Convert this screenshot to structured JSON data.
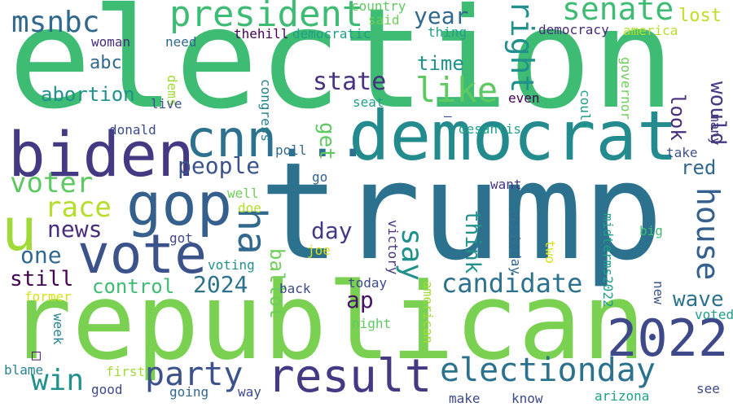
{
  "words": [
    {
      "text": "election",
      "color": "#3fbc73"
    },
    {
      "text": "trump",
      "color": "#2c728e"
    },
    {
      "text": "republican",
      "color": "#7ad151"
    },
    {
      "text": "democrat",
      "color": "#238a8d"
    },
    {
      "text": "biden",
      "color": "#443983"
    },
    {
      "text": "vote",
      "color": "#3b528b"
    },
    {
      "text": "gop",
      "color": "#355f8d"
    },
    {
      "text": "result",
      "color": "#443983"
    },
    {
      "text": "electionday",
      "color": "#2c728e"
    },
    {
      "text": "cnn...",
      "color": "#2c728e"
    },
    {
      "text": "2022",
      "color": "#3e4989"
    },
    {
      "text": "u",
      "color": "#a0da39"
    },
    {
      "text": "ha",
      "color": "#31688e"
    },
    {
      "text": "president",
      "color": "#3fbc73"
    },
    {
      "text": "senate",
      "color": "#3fbc73"
    },
    {
      "text": "msnbc",
      "color": "#31688e"
    },
    {
      "text": "like",
      "color": "#5ec962"
    },
    {
      "text": "right",
      "color": "#21918c"
    },
    {
      "text": "voter",
      "color": "#5ec962"
    },
    {
      "text": "race",
      "color": "#b5de2b"
    },
    {
      "text": "party",
      "color": "#3b528b"
    },
    {
      "text": "candidate",
      "color": "#2c728e"
    },
    {
      "text": "house",
      "color": "#355f8d"
    },
    {
      "text": "win",
      "color": "#21918c"
    },
    {
      "text": "say",
      "color": "#21918c"
    },
    {
      "text": "state",
      "color": "#46327e"
    },
    {
      "text": "people",
      "color": "#3b528b"
    },
    {
      "text": "news",
      "color": "#472d7b"
    },
    {
      "text": "control",
      "color": "#3fbc73"
    },
    {
      "text": "2024",
      "color": "#2c728e"
    },
    {
      "text": "year",
      "color": "#31688e"
    },
    {
      "text": "day",
      "color": "#443983"
    },
    {
      "text": "would",
      "color": "#443983"
    },
    {
      "text": "abortion",
      "color": "#21918c"
    },
    {
      "text": "still",
      "color": "#440154"
    },
    {
      "text": "one",
      "color": "#31688e"
    },
    {
      "text": "wave",
      "color": "#2c728e"
    },
    {
      "text": "time",
      "color": "#21918c"
    },
    {
      "text": "look",
      "color": "#472d7b"
    },
    {
      "text": "red",
      "color": "#31688e"
    },
    {
      "text": "abc",
      "color": "#31688e"
    },
    {
      "text": "ap",
      "color": "#471365"
    },
    {
      "text": "ballot",
      "color": "#6ece58"
    },
    {
      "text": "think",
      "color": "#21918c"
    },
    {
      "text": "get",
      "color": "#5ec962"
    },
    {
      "text": "lost",
      "color": "#bddf26"
    },
    {
      "text": "thehill",
      "color": "#440154"
    },
    {
      "text": "democratic",
      "color": "#1f9e89"
    },
    {
      "text": "country",
      "color": "#5ec962"
    },
    {
      "text": "said",
      "color": "#6ece58"
    },
    {
      "text": "thing",
      "color": "#1f9e89"
    },
    {
      "text": "democracy",
      "color": "#472d7b"
    },
    {
      "text": "america",
      "color": "#b5de2b"
    },
    {
      "text": "woman",
      "color": "#472d7b"
    },
    {
      "text": "need",
      "color": "#31688e"
    },
    {
      "text": "dems",
      "color": "#a0da39"
    },
    {
      "text": "live",
      "color": "#3b528b"
    },
    {
      "text": "congress",
      "color": "#26828e"
    },
    {
      "text": "seat",
      "color": "#1f9e89"
    },
    {
      "text": "even",
      "color": "#440154"
    },
    {
      "text": "could",
      "color": "#1fa187"
    },
    {
      "text": "governor",
      "color": "#6ece58"
    },
    {
      "text": "desantis",
      "color": "#1fa187"
    },
    {
      "text": "donald",
      "color": "#3e4989"
    },
    {
      "text": "poll",
      "color": "#31688e"
    },
    {
      "text": "go",
      "color": "#33638d"
    },
    {
      "text": "take",
      "color": "#3b528b"
    },
    {
      "text": "many",
      "color": "#46327e"
    },
    {
      "text": "want",
      "color": "#453781"
    },
    {
      "text": "well",
      "color": "#6ece58"
    },
    {
      "text": "doe",
      "color": "#b5de2b"
    },
    {
      "text": "joe",
      "color": "#d8e219"
    },
    {
      "text": "got",
      "color": "#3e4989"
    },
    {
      "text": "voting",
      "color": "#21918c"
    },
    {
      "text": "victory",
      "color": "#46327e"
    },
    {
      "text": "usatoday",
      "color": "#31688e"
    },
    {
      "text": "two",
      "color": "#d8e219"
    },
    {
      "text": "midterms2022",
      "color": "#1f9e89"
    },
    {
      "text": "big",
      "color": "#3fbc73"
    },
    {
      "text": "back",
      "color": "#3e4989"
    },
    {
      "text": "today",
      "color": "#3e4989"
    },
    {
      "text": "new",
      "color": "#3b528b"
    },
    {
      "text": "former",
      "color": "#d8e219"
    },
    {
      "text": "week",
      "color": "#26828e"
    },
    {
      "text": "night",
      "color": "#5ec962"
    },
    {
      "text": "american",
      "color": "#a0da39"
    },
    {
      "text": "voted",
      "color": "#1f9e89"
    },
    {
      "text": "blame",
      "color": "#26828e"
    },
    {
      "text": "first",
      "color": "#a0da39"
    },
    {
      "text": "good",
      "color": "#3e4989"
    },
    {
      "text": "going",
      "color": "#31688e"
    },
    {
      "text": "way",
      "color": "#3e4989"
    },
    {
      "text": "make",
      "color": "#3e4989"
    },
    {
      "text": "know",
      "color": "#3e4989"
    },
    {
      "text": "arizona",
      "color": "#1fa187"
    },
    {
      "text": "see",
      "color": "#3e4989"
    },
    {
      "text": "–",
      "color": "#3e4989"
    },
    {
      "text": "□",
      "color": "#471365"
    }
  ]
}
